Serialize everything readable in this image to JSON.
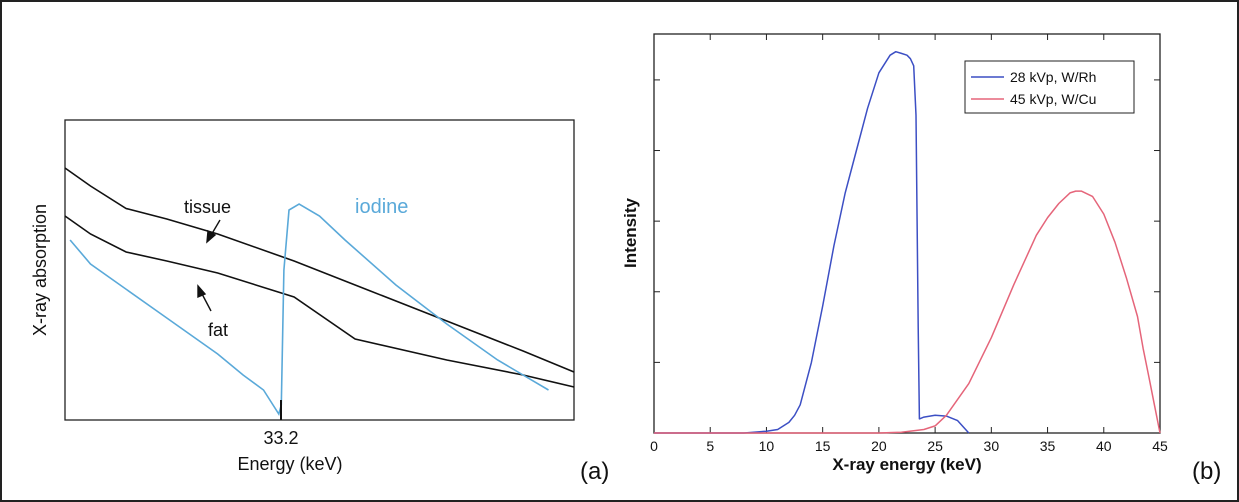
{
  "chart_data": [
    {
      "panel_label": "(a)",
      "type": "line",
      "xlabel": "Energy (keV)",
      "ylabel": "X-ray absorption",
      "xticks": [
        "33.2"
      ],
      "annotations": [
        "tissue",
        "fat",
        "iodine"
      ],
      "grid": false,
      "series": [
        {
          "name": "tissue",
          "color": "#111111",
          "values": [
            [
              0,
              0.84
            ],
            [
              0.05,
              0.78
            ],
            [
              0.12,
              0.705
            ],
            [
              0.2,
              0.67
            ],
            [
              0.3,
              0.62
            ],
            [
              0.45,
              0.53
            ],
            [
              0.6,
              0.43
            ],
            [
              0.75,
              0.33
            ],
            [
              0.9,
              0.23
            ],
            [
              1,
              0.16
            ]
          ]
        },
        {
          "name": "fat",
          "color": "#111111",
          "values": [
            [
              0,
              0.68
            ],
            [
              0.05,
              0.62
            ],
            [
              0.12,
              0.56
            ],
            [
              0.2,
              0.53
            ],
            [
              0.3,
              0.49
            ],
            [
              0.45,
              0.41
            ],
            [
              0.57,
              0.27
            ],
            [
              0.75,
              0.2
            ],
            [
              0.9,
              0.15
            ],
            [
              1,
              0.11
            ]
          ]
        },
        {
          "name": "iodine",
          "color": "#5aa9d9",
          "values": [
            [
              0.01,
              0.6
            ],
            [
              0.05,
              0.52
            ],
            [
              0.1,
              0.46
            ],
            [
              0.2,
              0.34
            ],
            [
              0.3,
              0.22
            ],
            [
              0.35,
              0.15
            ],
            [
              0.39,
              0.1
            ],
            [
              0.42,
              0.02
            ],
            [
              0.425,
              0.05
            ],
            [
              0.43,
              0.5
            ],
            [
              0.44,
              0.7
            ],
            [
              0.46,
              0.72
            ],
            [
              0.5,
              0.68
            ],
            [
              0.55,
              0.6
            ],
            [
              0.65,
              0.45
            ],
            [
              0.75,
              0.32
            ],
            [
              0.85,
              0.2
            ],
            [
              0.95,
              0.1
            ]
          ]
        }
      ]
    },
    {
      "panel_label": "(b)",
      "type": "line",
      "xlabel": "X-ray energy (keV)",
      "ylabel": "Intensity",
      "xlim": [
        0,
        45
      ],
      "ylim": [
        0,
        1.13
      ],
      "xticks": [
        "0",
        "5",
        "10",
        "15",
        "20",
        "25",
        "30",
        "35",
        "40",
        "45"
      ],
      "legend": "top-right",
      "grid": false,
      "series": [
        {
          "name": "28 kVp, W/Rh",
          "color": "#3c4fc4",
          "x": [
            0,
            5,
            8,
            10,
            11,
            12,
            12.5,
            13,
            14,
            15,
            16,
            17,
            18,
            19,
            20,
            21,
            21.5,
            22,
            22.5,
            22.8,
            23.1,
            23.3,
            23.4,
            23.5,
            23.6,
            24,
            25,
            26,
            27,
            28
          ],
          "y": [
            0,
            0,
            0,
            0.005,
            0.01,
            0.03,
            0.05,
            0.08,
            0.2,
            0.36,
            0.53,
            0.68,
            0.8,
            0.92,
            1.02,
            1.07,
            1.08,
            1.075,
            1.07,
            1.06,
            1.04,
            0.9,
            0.6,
            0.3,
            0.04,
            0.045,
            0.05,
            0.048,
            0.035,
            0.0
          ]
        },
        {
          "name": "45 kVp, W/Cu",
          "color": "#e5657a",
          "x": [
            0,
            20,
            22,
            24,
            25,
            26,
            28,
            30,
            32,
            34,
            35,
            36,
            37,
            37.5,
            38,
            39,
            40,
            41,
            42,
            43,
            43.5,
            44,
            44.5,
            45
          ],
          "y": [
            0,
            0,
            0.002,
            0.01,
            0.02,
            0.05,
            0.14,
            0.27,
            0.42,
            0.56,
            0.61,
            0.65,
            0.68,
            0.685,
            0.685,
            0.67,
            0.62,
            0.54,
            0.44,
            0.33,
            0.24,
            0.16,
            0.08,
            0.0
          ]
        }
      ]
    }
  ]
}
